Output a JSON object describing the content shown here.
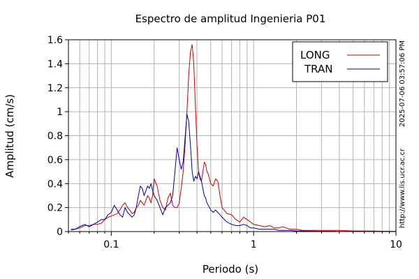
{
  "chart_data": {
    "type": "line",
    "title": "Espectro de amplitud Ingenieria P01",
    "xlabel": "Periodo (s)",
    "ylabel": "Amplitud (cm/s)",
    "x_scale": "log",
    "xlim": [
      0.05,
      10
    ],
    "ylim": [
      0,
      1.6
    ],
    "x_ticks": [
      0.1,
      1,
      10
    ],
    "x_tick_labels": [
      "0.1",
      "1",
      "10"
    ],
    "y_ticks": [
      0,
      0.2,
      0.4,
      0.6,
      0.8,
      1,
      1.2,
      1.4,
      1.6
    ],
    "y_tick_labels": [
      "0",
      "0.2",
      "0.4",
      "0.6",
      "0.8",
      "1",
      "1.2",
      "1.4",
      "1.6"
    ],
    "grid": true,
    "legend_position": "top-right",
    "side_texts": [
      "2025-07-06 03:57:06 PM",
      "http://www.lis.ucr.ac.cr"
    ],
    "series": [
      {
        "name": "LONG",
        "color": "#cc0000",
        "x": [
          0.052,
          0.056,
          0.06,
          0.065,
          0.07,
          0.075,
          0.08,
          0.085,
          0.09,
          0.095,
          0.1,
          0.105,
          0.11,
          0.115,
          0.12,
          0.125,
          0.13,
          0.135,
          0.14,
          0.145,
          0.15,
          0.155,
          0.16,
          0.165,
          0.17,
          0.175,
          0.18,
          0.185,
          0.19,
          0.195,
          0.2,
          0.21,
          0.22,
          0.23,
          0.24,
          0.25,
          0.26,
          0.27,
          0.28,
          0.29,
          0.3,
          0.31,
          0.32,
          0.33,
          0.34,
          0.35,
          0.36,
          0.37,
          0.38,
          0.39,
          0.4,
          0.41,
          0.42,
          0.43,
          0.44,
          0.45,
          0.46,
          0.47,
          0.48,
          0.5,
          0.52,
          0.54,
          0.56,
          0.58,
          0.6,
          0.65,
          0.7,
          0.75,
          0.8,
          0.85,
          0.9,
          0.95,
          1.0,
          1.1,
          1.2,
          1.3,
          1.4,
          1.5,
          1.6,
          1.7,
          1.8,
          2.0,
          2.2,
          2.5,
          3.0,
          3.5,
          4.0,
          5.0,
          6.0,
          7.0,
          8.0,
          10.0
        ],
        "y": [
          0.01,
          0.02,
          0.03,
          0.05,
          0.05,
          0.06,
          0.06,
          0.07,
          0.1,
          0.12,
          0.13,
          0.14,
          0.15,
          0.18,
          0.22,
          0.24,
          0.2,
          0.18,
          0.15,
          0.16,
          0.2,
          0.22,
          0.26,
          0.24,
          0.22,
          0.26,
          0.3,
          0.28,
          0.24,
          0.3,
          0.44,
          0.38,
          0.26,
          0.2,
          0.18,
          0.28,
          0.32,
          0.22,
          0.2,
          0.2,
          0.24,
          0.36,
          0.5,
          0.72,
          1.0,
          1.3,
          1.5,
          1.56,
          1.4,
          1.05,
          0.72,
          0.5,
          0.44,
          0.42,
          0.5,
          0.58,
          0.56,
          0.5,
          0.48,
          0.4,
          0.38,
          0.44,
          0.42,
          0.3,
          0.2,
          0.15,
          0.14,
          0.1,
          0.08,
          0.12,
          0.1,
          0.08,
          0.06,
          0.05,
          0.04,
          0.05,
          0.03,
          0.03,
          0.04,
          0.03,
          0.02,
          0.02,
          0.01,
          0.01,
          0.01,
          0.01,
          0.01,
          0.005,
          0.005,
          0.004,
          0.003,
          0.002
        ]
      },
      {
        "name": "TRAN",
        "color": "#0000aa",
        "x": [
          0.052,
          0.056,
          0.06,
          0.065,
          0.07,
          0.075,
          0.08,
          0.085,
          0.09,
          0.095,
          0.1,
          0.105,
          0.11,
          0.115,
          0.12,
          0.125,
          0.13,
          0.135,
          0.14,
          0.145,
          0.15,
          0.155,
          0.16,
          0.165,
          0.17,
          0.175,
          0.18,
          0.185,
          0.19,
          0.195,
          0.2,
          0.21,
          0.22,
          0.23,
          0.24,
          0.25,
          0.26,
          0.27,
          0.28,
          0.29,
          0.3,
          0.31,
          0.32,
          0.33,
          0.34,
          0.35,
          0.36,
          0.37,
          0.38,
          0.39,
          0.4,
          0.41,
          0.42,
          0.43,
          0.44,
          0.45,
          0.46,
          0.47,
          0.48,
          0.5,
          0.52,
          0.54,
          0.56,
          0.58,
          0.6,
          0.65,
          0.7,
          0.75,
          0.8,
          0.85,
          0.9,
          0.95,
          1.0,
          1.1,
          1.2,
          1.3,
          1.4,
          1.5,
          1.6,
          1.7,
          1.8,
          2.0,
          2.2,
          2.5,
          3.0,
          3.5,
          4.0,
          5.0,
          6.0,
          7.0,
          8.0,
          10.0
        ],
        "y": [
          0.02,
          0.02,
          0.04,
          0.06,
          0.04,
          0.06,
          0.08,
          0.1,
          0.1,
          0.14,
          0.16,
          0.22,
          0.18,
          0.14,
          0.12,
          0.2,
          0.16,
          0.14,
          0.12,
          0.14,
          0.2,
          0.3,
          0.38,
          0.36,
          0.3,
          0.34,
          0.38,
          0.36,
          0.4,
          0.34,
          0.3,
          0.26,
          0.2,
          0.14,
          0.2,
          0.22,
          0.24,
          0.3,
          0.5,
          0.7,
          0.6,
          0.52,
          0.58,
          0.78,
          0.98,
          0.92,
          0.72,
          0.5,
          0.42,
          0.46,
          0.44,
          0.5,
          0.46,
          0.42,
          0.36,
          0.3,
          0.28,
          0.24,
          0.22,
          0.18,
          0.16,
          0.18,
          0.16,
          0.14,
          0.12,
          0.08,
          0.06,
          0.05,
          0.05,
          0.06,
          0.05,
          0.03,
          0.03,
          0.02,
          0.02,
          0.02,
          0.02,
          0.01,
          0.01,
          0.01,
          0.01,
          0.005,
          0.005,
          0.004,
          0.003,
          0.003,
          0.002,
          0.002,
          0.002,
          0.001,
          0.001,
          0.001
        ]
      }
    ]
  }
}
